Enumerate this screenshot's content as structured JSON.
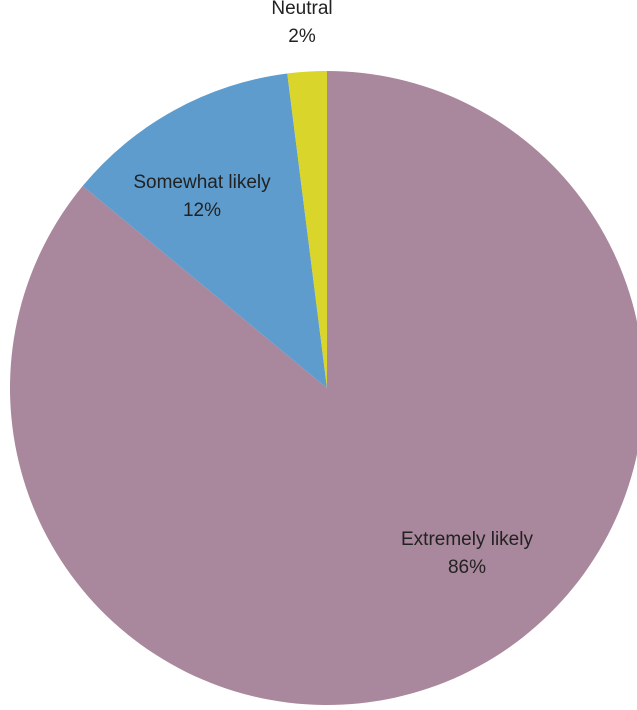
{
  "chart_data": {
    "type": "pie",
    "title": "",
    "start_angle_deg": 0,
    "direction": "clockwise",
    "slices": [
      {
        "name": "Extremely likely",
        "value": 86,
        "label": "86%",
        "color": "#a9879c"
      },
      {
        "name": "Somewhat likely",
        "value": 12,
        "label": "12%",
        "color": "#5d9ccd"
      },
      {
        "name": "Neutral",
        "value": 2,
        "label": "2%",
        "color": "#d9d52a"
      }
    ],
    "legend": "none"
  }
}
